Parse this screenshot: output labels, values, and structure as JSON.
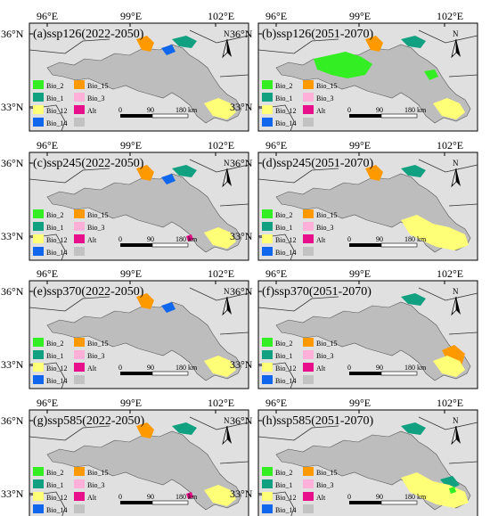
{
  "figure": {
    "lon_ticks": [
      "96°E",
      "99°E",
      "102°E"
    ],
    "lat_ticks": [
      "36°N",
      "33°N"
    ],
    "panels": [
      {
        "id": "a",
        "title": "(a)ssp126(2022-2050)",
        "dominant": "Bio_12",
        "patches": [
          {
            "var": "Bio_15",
            "where": "north"
          },
          {
            "var": "Bio_14",
            "where": "north"
          },
          {
            "var": "Bio_1",
            "where": "north"
          },
          {
            "var": "Bio_12",
            "where": "southeast"
          }
        ]
      },
      {
        "id": "b",
        "title": "(b)ssp126(2051-2070)",
        "dominant": "Bio_2",
        "patches": [
          {
            "var": "Bio_2",
            "where": "central"
          },
          {
            "var": "Bio_2",
            "where": "east"
          },
          {
            "var": "Bio_15",
            "where": "north"
          },
          {
            "var": "Bio_1",
            "where": "north"
          },
          {
            "var": "Bio_12",
            "where": "southeast"
          }
        ]
      },
      {
        "id": "c",
        "title": "(c)ssp245(2022-2050)",
        "dominant": "Bio_12",
        "patches": [
          {
            "var": "Bio_15",
            "where": "north"
          },
          {
            "var": "Bio_14",
            "where": "north"
          },
          {
            "var": "Bio_1",
            "where": "north"
          },
          {
            "var": "Bio_12",
            "where": "southeast"
          },
          {
            "var": "Alt",
            "where": "south"
          }
        ]
      },
      {
        "id": "d",
        "title": "(d)ssp245(2051-2070)",
        "dominant": "Bio_12",
        "patches": [
          {
            "var": "Bio_15",
            "where": "north"
          },
          {
            "var": "Bio_1",
            "where": "north"
          },
          {
            "var": "Bio_12",
            "where": "southeast-large"
          }
        ]
      },
      {
        "id": "e",
        "title": "(e)ssp370(2022-2050)",
        "dominant": "Bio_12",
        "patches": [
          {
            "var": "Bio_15",
            "where": "north"
          },
          {
            "var": "Bio_14",
            "where": "north"
          },
          {
            "var": "Bio_12",
            "where": "southeast"
          }
        ]
      },
      {
        "id": "f",
        "title": "(f)ssp370(2051-2070)",
        "dominant": "Bio_15",
        "patches": [
          {
            "var": "Bio_1",
            "where": "north"
          },
          {
            "var": "Bio_15",
            "where": "southeast"
          },
          {
            "var": "Bio_12",
            "where": "southeast"
          }
        ]
      },
      {
        "id": "g",
        "title": "(g)ssp585(2022-2050)",
        "dominant": "Bio_12",
        "patches": [
          {
            "var": "Bio_15",
            "where": "north"
          },
          {
            "var": "Bio_1",
            "where": "north"
          },
          {
            "var": "Bio_12",
            "where": "southeast"
          },
          {
            "var": "Alt",
            "where": "south"
          }
        ]
      },
      {
        "id": "h",
        "title": "(h)ssp585(2051-2070)",
        "dominant": "Bio_1",
        "patches": [
          {
            "var": "Bio_1",
            "where": "north"
          },
          {
            "var": "Bio_1",
            "where": "southeast"
          },
          {
            "var": "Bio_12",
            "where": "southeast-large"
          },
          {
            "var": "Bio_2",
            "where": "southeast"
          }
        ]
      }
    ],
    "legend": [
      {
        "id": "Bio_2",
        "label": "Bio_2",
        "color": "#33ee22"
      },
      {
        "id": "Bio_15",
        "label": "Bio_15",
        "color": "#ff9900"
      },
      {
        "id": "Bio_1",
        "label": "Bio_1",
        "color": "#11a080"
      },
      {
        "id": "Bio_3",
        "label": "Bio_3",
        "color": "#ffb0d8"
      },
      {
        "id": "Bio_12",
        "label": "Bio_12",
        "color": "#ffff77"
      },
      {
        "id": "Alt",
        "label": "Alt",
        "color": "#e8108a"
      },
      {
        "id": "Bio_14",
        "label": "Bio_14",
        "color": "#1166ee"
      },
      {
        "id": "None",
        "label": "",
        "color": "#c2c2c2"
      }
    ],
    "scale_bar": {
      "labels": [
        "0",
        "90",
        "180 km"
      ]
    },
    "north_arrow": {
      "label": "N"
    },
    "colors": {
      "panel_bg": "#e0e0e0",
      "basin": "#bdbdbd",
      "boundary": "#333333"
    }
  }
}
